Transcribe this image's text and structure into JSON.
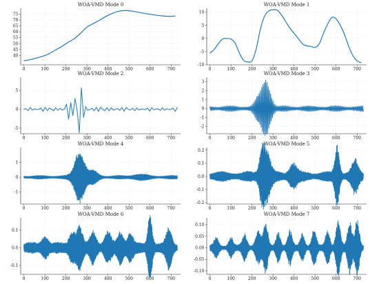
{
  "colors": {
    "line": "#1f77b4"
  },
  "chart_data": [
    {
      "type": "line",
      "title": "WOA-VMD Mode 0",
      "xlim": [
        -15,
        745
      ],
      "ylim": [
        32,
        80
      ],
      "xticks": [
        0,
        100,
        200,
        300,
        400,
        500,
        600,
        700
      ],
      "yticks": [
        40,
        45,
        50,
        55,
        60,
        65,
        70,
        75
      ],
      "grid": true,
      "series": [
        {
          "kind": "points",
          "x": [
            0,
            30,
            60,
            90,
            120,
            150,
            180,
            210,
            240,
            270,
            300,
            330,
            360,
            390,
            420,
            450,
            480,
            510,
            540,
            570,
            600,
            630,
            660,
            690,
            720
          ],
          "y": [
            35.5,
            36.3,
            37.8,
            39.3,
            41.4,
            44.5,
            47.5,
            51.0,
            54.2,
            58.8,
            64.0,
            67.0,
            69.9,
            73.1,
            75.6,
            77.4,
            78.1,
            77.7,
            76.8,
            75.8,
            74.9,
            74.1,
            73.5,
            73.2,
            73.4
          ]
        }
      ]
    },
    {
      "type": "line",
      "title": "WOA-VMD Mode 1",
      "xlim": [
        -15,
        745
      ],
      "ylim": [
        -10,
        11.5
      ],
      "xticks": [
        0,
        100,
        200,
        300,
        400,
        500,
        600,
        700
      ],
      "yticks": [
        -10,
        -5,
        0,
        5,
        10
      ],
      "grid": true,
      "series": [
        {
          "kind": "points",
          "x": [
            0,
            20,
            40,
            60,
            80,
            100,
            120,
            140,
            160,
            180,
            200,
            220,
            240,
            260,
            280,
            300,
            320,
            340,
            360,
            380,
            400,
            420,
            440,
            460,
            480,
            500,
            520,
            540,
            560,
            580,
            600,
            620,
            640,
            660,
            680,
            700,
            720
          ],
          "y": [
            -5.5,
            -4.2,
            -2.0,
            -0.2,
            0.0,
            -0.2,
            -1.8,
            -5.5,
            -8.3,
            -8.9,
            -8.5,
            -4.0,
            3.5,
            8.5,
            10.5,
            10.9,
            10.8,
            9.0,
            6.5,
            4.0,
            2.0,
            0.0,
            -2.0,
            -2.8,
            -3.0,
            -3.4,
            -2.0,
            2.0,
            5.5,
            8.0,
            7.5,
            5.0,
            1.5,
            -3.0,
            -6.5,
            -8.5,
            -9.2
          ]
        }
      ]
    },
    {
      "type": "line",
      "title": "WOA-VMD Mode 2",
      "xlim": [
        -15,
        745
      ],
      "ylim": [
        -6.5,
        8.5
      ],
      "xticks": [
        0,
        100,
        200,
        300,
        400,
        500,
        600,
        700
      ],
      "yticks": [
        -5,
        0,
        5
      ],
      "grid": true,
      "series": [
        {
          "kind": "wave",
          "n": 73,
          "freq": 0.26,
          "base": 0.65,
          "bursts": [
            {
              "c": 260,
              "w": 14,
              "a": 7.8
            },
            {
              "c": 210,
              "w": 10,
              "a": 2.2
            }
          ],
          "noise": 0.25
        }
      ]
    },
    {
      "type": "line",
      "title": "WOA-VMD Mode 3",
      "xlim": [
        -15,
        745
      ],
      "ylim": [
        -2.8,
        3.5
      ],
      "xticks": [
        0,
        100,
        200,
        300,
        400,
        500,
        600,
        700
      ],
      "yticks": [
        -2,
        -1,
        0,
        1,
        2,
        3
      ],
      "grid": true,
      "series": [
        {
          "kind": "wave",
          "n": 730,
          "freq": 1.05,
          "base": 0.32,
          "bursts": [
            {
              "c": 265,
              "w": 20,
              "a": 3.0
            },
            {
              "c": 225,
              "w": 14,
              "a": 0.7
            }
          ],
          "noise": 0.12
        }
      ]
    },
    {
      "type": "line",
      "title": "WOA-VMD Mode 4",
      "xlim": [
        -15,
        745
      ],
      "ylim": [
        -1.8,
        2.0
      ],
      "xticks": [
        0,
        100,
        200,
        300,
        400,
        500,
        600,
        700
      ],
      "yticks": [
        -1,
        0,
        1
      ],
      "grid": true,
      "series": [
        {
          "kind": "wave",
          "n": 1460,
          "freq": 1.9,
          "base": 0.12,
          "bursts": [
            {
              "c": 265,
              "w": 22,
              "a": 1.55
            },
            {
              "c": 330,
              "w": 20,
              "a": 0.35
            },
            {
              "c": 550,
              "w": 30,
              "a": 0.12
            }
          ],
          "noise": 0.2
        }
      ]
    },
    {
      "type": "line",
      "title": "WOA-VMD Mode 5",
      "xlim": [
        -15,
        745
      ],
      "ylim": [
        -0.21,
        0.22
      ],
      "xticks": [
        0,
        100,
        200,
        300,
        400,
        500,
        600,
        700
      ],
      "yticks": [
        -0.2,
        -0.1,
        0.0,
        0.1,
        0.2
      ],
      "grid": true,
      "series": [
        {
          "kind": "wave",
          "n": 2920,
          "freq": 3.3,
          "base": 0.035,
          "bursts": [
            {
              "c": 265,
              "w": 18,
              "a": 0.17
            },
            {
              "c": 245,
              "w": 10,
              "a": 0.1
            },
            {
              "c": 395,
              "w": 16,
              "a": 0.07
            },
            {
              "c": 605,
              "w": 10,
              "a": 0.19
            },
            {
              "c": 690,
              "w": 14,
              "a": 0.09
            }
          ],
          "noise": 0.35
        }
      ]
    },
    {
      "type": "line",
      "title": "WOA-VMD Mode 6",
      "xlim": [
        -15,
        745
      ],
      "ylim": [
        -0.15,
        0.17
      ],
      "xticks": [
        0,
        100,
        200,
        300,
        400,
        500,
        600,
        700
      ],
      "yticks": [
        -0.1,
        0.0,
        0.1
      ],
      "grid": true,
      "series": [
        {
          "kind": "wave",
          "n": 2920,
          "freq": 4.2,
          "base": 0.028,
          "bursts": [
            {
              "c": 100,
              "w": 14,
              "a": 0.05
            },
            {
              "c": 230,
              "w": 14,
              "a": 0.07
            },
            {
              "c": 265,
              "w": 12,
              "a": 0.1
            },
            {
              "c": 330,
              "w": 14,
              "a": 0.07
            },
            {
              "c": 400,
              "w": 14,
              "a": 0.06
            },
            {
              "c": 460,
              "w": 14,
              "a": 0.07
            },
            {
              "c": 505,
              "w": 12,
              "a": 0.06
            },
            {
              "c": 600,
              "w": 10,
              "a": 0.15
            },
            {
              "c": 690,
              "w": 12,
              "a": 0.09
            }
          ],
          "noise": 0.35
        }
      ]
    },
    {
      "type": "line",
      "title": "WOA-VMD Mode 7",
      "xlim": [
        -15,
        745
      ],
      "ylim": [
        -0.115,
        0.13
      ],
      "xticks": [
        0,
        100,
        200,
        300,
        400,
        500,
        600,
        700
      ],
      "yticks": [
        -0.1,
        -0.05,
        0.0,
        0.05,
        0.1
      ],
      "grid": true,
      "series": [
        {
          "kind": "wave",
          "n": 2920,
          "freq": 4.9,
          "base": 0.012,
          "bursts": [
            {
              "c": 30,
              "w": 10,
              "a": 0.03
            },
            {
              "c": 100,
              "w": 10,
              "a": 0.035
            },
            {
              "c": 165,
              "w": 10,
              "a": 0.045
            },
            {
              "c": 230,
              "w": 12,
              "a": 0.06
            },
            {
              "c": 265,
              "w": 10,
              "a": 0.09
            },
            {
              "c": 325,
              "w": 10,
              "a": 0.055
            },
            {
              "c": 380,
              "w": 10,
              "a": 0.06
            },
            {
              "c": 440,
              "w": 10,
              "a": 0.05
            },
            {
              "c": 495,
              "w": 10,
              "a": 0.065
            },
            {
              "c": 560,
              "w": 10,
              "a": 0.06
            },
            {
              "c": 610,
              "w": 10,
              "a": 0.105
            },
            {
              "c": 665,
              "w": 10,
              "a": 0.09
            },
            {
              "c": 700,
              "w": 10,
              "a": 0.105
            }
          ],
          "noise": 0.3
        }
      ]
    }
  ]
}
